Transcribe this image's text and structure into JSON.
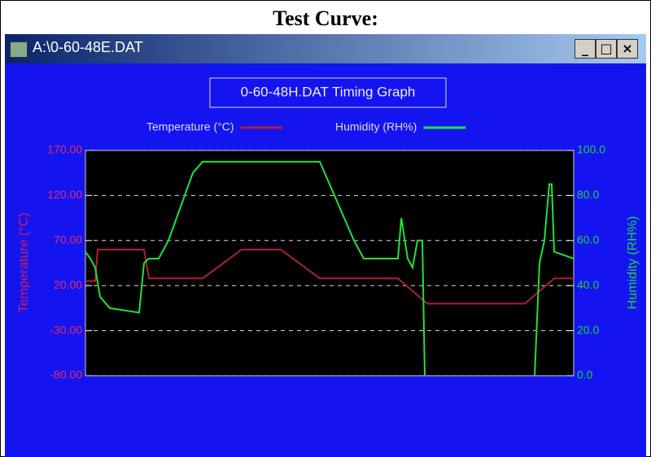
{
  "header": {
    "title": "Test Curve:"
  },
  "window": {
    "title": "A:\\0-60-48E.DAT"
  },
  "chart_data": {
    "type": "line",
    "title": "0-60-48H.DAT Timing Graph",
    "ylabel": "Temperature (°C)",
    "y2label": "Humidity (RH%)",
    "xlim": [
      0,
      100
    ],
    "ylim": [
      -80,
      170
    ],
    "yticks": [
      {
        "value": 170,
        "label": "170.00"
      },
      {
        "value": 120,
        "label": "120.00"
      },
      {
        "value": 70,
        "label": "70.00"
      },
      {
        "value": 20,
        "label": "20.00"
      },
      {
        "value": -30,
        "label": "-30.00"
      },
      {
        "value": -80,
        "label": "-80.00"
      }
    ],
    "y2lim": [
      0,
      100
    ],
    "y2ticks": [
      {
        "value": 100,
        "label": "100.0"
      },
      {
        "value": 80,
        "label": "80.0"
      },
      {
        "value": 60,
        "label": "60.0"
      },
      {
        "value": 40,
        "label": "40.0"
      },
      {
        "value": 20,
        "label": "20.0"
      },
      {
        "value": 0,
        "label": "0.0"
      }
    ],
    "grid": true,
    "series": [
      {
        "name": "Temperature (°C)",
        "color": "#b02030",
        "x": [
          0,
          2,
          2.5,
          12,
          13,
          24,
          32,
          40,
          48,
          64,
          70,
          90,
          96,
          100
        ],
        "values": [
          25,
          25,
          60,
          60,
          28,
          28,
          60,
          60,
          28,
          28,
          0,
          0,
          28,
          28
        ]
      },
      {
        "name": "Humidity (RH%)",
        "color": "#20e040",
        "axis": "y2",
        "x": [
          0,
          1,
          2,
          3,
          5,
          11,
          12,
          13,
          15,
          17,
          22,
          24,
          48,
          55,
          57,
          64,
          64.7,
          66,
          67,
          68,
          69,
          69.5,
          80,
          92,
          93,
          94,
          95,
          95.5,
          96,
          100
        ],
        "values": [
          55,
          52,
          48,
          35,
          30,
          28,
          50,
          52,
          52,
          60,
          90,
          95,
          95,
          60,
          52,
          52,
          70,
          52,
          48,
          60,
          60,
          0,
          null,
          0,
          50,
          60,
          85,
          85,
          55,
          52
        ]
      }
    ]
  }
}
